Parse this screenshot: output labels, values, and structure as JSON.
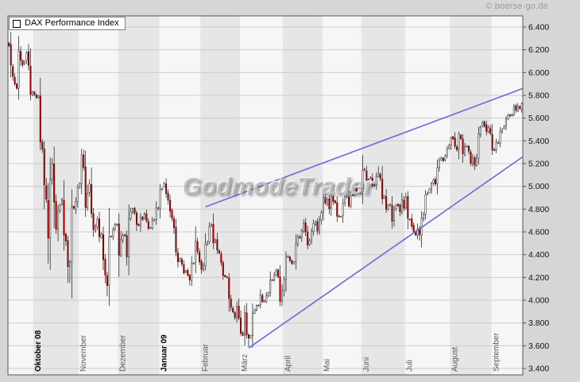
{
  "header": {
    "copyright": "© boerse-go.de"
  },
  "legend": {
    "label": "DAX Performance Index"
  },
  "watermark": {
    "text": "GodmodeTrader"
  },
  "chart_data": {
    "type": "candlestick",
    "title": "DAX Performance Index",
    "subtitle": "",
    "xlabel": "",
    "ylabel": "",
    "y_range": [
      3400,
      6400
    ],
    "y_step": 200,
    "y_ticks": [
      "6.400",
      "6.200",
      "6.000",
      "5.800",
      "5.600",
      "5.400",
      "5.200",
      "5.000",
      "4.800",
      "4.600",
      "4.400",
      "4.200",
      "4.000",
      "3.800",
      "3.600",
      "3.400"
    ],
    "grid": true,
    "legend_position": "top-left",
    "months": [
      {
        "label": "",
        "days": 13,
        "bold": false
      },
      {
        "label": "Oktober 08",
        "days": 23,
        "bold": true
      },
      {
        "label": "November",
        "days": 20,
        "bold": false
      },
      {
        "label": "Dezember",
        "days": 21,
        "bold": false
      },
      {
        "label": "Januar 09",
        "days": 21,
        "bold": true
      },
      {
        "label": "Februar",
        "days": 20,
        "bold": false
      },
      {
        "label": "März",
        "days": 22,
        "bold": false
      },
      {
        "label": "April",
        "days": 20,
        "bold": false
      },
      {
        "label": "Mai",
        "days": 20,
        "bold": false
      },
      {
        "label": "Juni",
        "days": 22,
        "bold": false
      },
      {
        "label": "Juli",
        "days": 23,
        "bold": false
      },
      {
        "label": "August",
        "days": 21,
        "bold": false
      },
      {
        "label": "September",
        "days": 16,
        "bold": false
      }
    ],
    "closes": [
      6235,
      6064,
      5965,
      5900,
      5860,
      6190,
      6108,
      6068,
      6101,
      6173,
      6063,
      5807,
      5831,
      5807,
      5780,
      5797,
      5387,
      5327,
      5013,
      4887,
      4544,
      5062,
      5199,
      4861,
      4622,
      4781,
      4835,
      4882,
      4571,
      4519,
      4295,
      4334,
      4823,
      4808,
      4869,
      4987,
      5026,
      5278,
      5166,
      4813,
      4938,
      5025,
      4761,
      4620,
      4649,
      4710,
      4557,
      4580,
      4354,
      4220,
      4127,
      4554,
      4560,
      4620,
      4665,
      4669,
      4394,
      4531,
      4567,
      4564,
      4381,
      4715,
      4779,
      4805,
      4767,
      4663,
      4655,
      4729,
      4708,
      4756,
      4696,
      4629,
      4639,
      4704,
      4707,
      4810,
      4810,
      4973,
      4983,
      5026,
      4937,
      4879,
      4783,
      4719,
      4636,
      4422,
      4336,
      4366,
      4316,
      4239,
      4261,
      4219,
      4178,
      4327,
      4324,
      4519,
      4429,
      4338,
      4270,
      4307,
      4493,
      4510,
      4644,
      4667,
      4505,
      4530,
      4440,
      4413,
      4330,
      4217,
      4205,
      4202,
      4014,
      3936,
      3896,
      3847,
      3942,
      3843,
      3710,
      3691,
      3890,
      3695,
      3666,
      3692,
      3887,
      3914,
      3956,
      3953,
      4044,
      3987,
      3996,
      4043,
      4069,
      4177,
      4176,
      4223,
      4259,
      4203,
      3989,
      4085,
      4180,
      4385,
      4385,
      4349,
      4322,
      4336,
      4491,
      4557,
      4550,
      4609,
      4677,
      4601,
      4484,
      4523,
      4609,
      4674,
      4694,
      4607,
      4704,
      4769,
      4902,
      4853,
      4882,
      4804,
      4913,
      4866,
      4854,
      4738,
      4737,
      4737,
      4852,
      4910,
      4918,
      4827,
      4918,
      4918,
      4993,
      4945,
      4933,
      4941,
      5142,
      5144,
      5054,
      5064,
      5077,
      5004,
      5007,
      5088,
      5107,
      5069,
      4890,
      4915,
      4799,
      4837,
      4839,
      4693,
      4796,
      4836,
      4830,
      4776,
      4885,
      4809,
      4905,
      4718,
      4708,
      4650,
      4598,
      4572,
      4630,
      4576,
      4722,
      4760,
      4928,
      4941,
      4978,
      5028,
      5055,
      5021,
      5165,
      5229,
      5252,
      5225,
      5270,
      5332,
      5360,
      5427,
      5417,
      5353,
      5320,
      5459,
      5418,
      5286,
      5349,
      5356,
      5309,
      5202,
      5250,
      5186,
      5243,
      5462,
      5519,
      5557,
      5532,
      5482,
      5517,
      5464,
      5319,
      5320,
      5384,
      5384,
      5481,
      5502,
      5525,
      5595,
      5624,
      5620,
      5629,
      5701,
      5668,
      5704,
      5684,
      5727
    ],
    "extremes": {
      "20": {
        "low": 4521
      },
      "30": {
        "low": 4204
      },
      "31": {
        "low": 4150
      },
      "50": {
        "low": 4034
      },
      "92": {
        "low": 4131
      },
      "122": {
        "low": 3589
      },
      "188": {
        "high": 5177
      },
      "209": {
        "low": 4524
      }
    },
    "trendlines": [
      {
        "id": "upper-wedge-line",
        "from": [
          100.5,
          4820
        ],
        "to": [
          262,
          5860
        ]
      },
      {
        "id": "lower-wedge-line",
        "from": [
          122.5,
          3580
        ],
        "to": [
          262,
          5260
        ]
      }
    ],
    "colors": {
      "up": "#ffffff",
      "down": "#bb0000",
      "wick": "#111111",
      "trend": "#6b6bdf",
      "grid": "#cccccc",
      "band_light": "#f6f6f6",
      "band_dark": "#e6e6e6",
      "plot_border": "#555555",
      "axis_text": "#111111",
      "month_text": "#5a5a5a",
      "month_text_bold": "#000000",
      "background": "#d6d6d6"
    }
  }
}
